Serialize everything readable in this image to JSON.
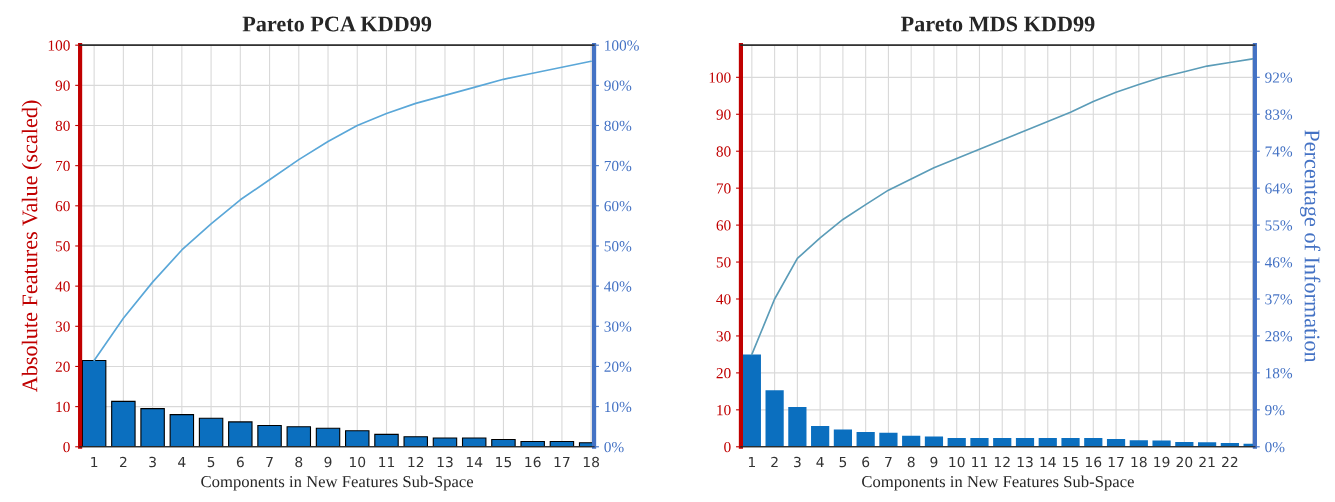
{
  "chart_data": [
    {
      "type": "bar",
      "title": "Pareto PCA KDD99",
      "xlabel": "Components in New Features Sub-Space",
      "ylabel": "Absolute Features Value (scaled)",
      "categories": [
        "1",
        "2",
        "3",
        "4",
        "5",
        "6",
        "7",
        "8",
        "9",
        "10",
        "11",
        "12",
        "13",
        "14",
        "15",
        "16",
        "17",
        "18"
      ],
      "series": [
        {
          "color": "#0b6fbf",
          "values": [
            21.5,
            11.3,
            9.5,
            8.0,
            7.1,
            6.2,
            5.3,
            5.0,
            4.6,
            4.0,
            3.1,
            2.5,
            2.2,
            2.2,
            1.8,
            1.3,
            1.3,
            1.0
          ]
        },
        {
          "type": "line",
          "axis": "y2",
          "color": "#5aa7d8",
          "values": [
            21.5,
            32,
            41,
            49,
            55.5,
            61.5,
            66.5,
            71.5,
            76,
            80,
            83,
            85.5,
            87.5,
            89.5,
            91.5,
            93,
            94.5,
            96
          ]
        }
      ],
      "ylim": [
        0,
        100
      ],
      "yticks": [
        0,
        10,
        20,
        30,
        40,
        50,
        60,
        70,
        80,
        90,
        100
      ],
      "y2lim": [
        0,
        100
      ],
      "y2ticks": [
        {
          "value": 0,
          "label": "0%"
        },
        {
          "value": 10,
          "label": "10%"
        },
        {
          "value": 20,
          "label": "20%"
        },
        {
          "value": 30,
          "label": "30%"
        },
        {
          "value": 40,
          "label": "40%"
        },
        {
          "value": 50,
          "label": "50%"
        },
        {
          "value": 60,
          "label": "60%"
        },
        {
          "value": 70,
          "label": "70%"
        },
        {
          "value": 80,
          "label": "80%"
        },
        {
          "value": 90,
          "label": "90%"
        },
        {
          "value": 100,
          "label": "100%"
        }
      ],
      "grid": true
    },
    {
      "type": "bar",
      "title": "Pareto MDS KDD99",
      "xlabel": "Components in New Features Sub-Space",
      "y2label": "Percentage of Information",
      "categories": [
        "1",
        "2",
        "3",
        "4",
        "5",
        "6",
        "7",
        "8",
        "9",
        "10",
        "11",
        "12",
        "13",
        "14",
        "15",
        "16",
        "17",
        "18",
        "19",
        "20",
        "21",
        "22",
        null
      ],
      "series": [
        {
          "color": "#0b6fbf",
          "values": [
            25,
            15.3,
            10.8,
            5.6,
            4.7,
            4.0,
            3.8,
            3.0,
            2.8,
            2.4,
            2.4,
            2.4,
            2.4,
            2.4,
            2.4,
            2.4,
            2.1,
            1.8,
            1.7,
            1.3,
            1.2,
            1.0,
            0.8
          ]
        },
        {
          "type": "line",
          "axis": "y2",
          "color": "#5b9cb8",
          "values": [
            23,
            36.8,
            46.9,
            52,
            56.6,
            60.3,
            63.9,
            66.7,
            69.5,
            71.8,
            74.1,
            76.4,
            78.7,
            81,
            83.3,
            86,
            88.3,
            90.2,
            92,
            93.4,
            94.8,
            95.7,
            96.6
          ]
        }
      ],
      "ylim": [
        0,
        108.7
      ],
      "yticks": [
        0,
        10,
        20,
        30,
        40,
        50,
        60,
        70,
        80,
        90,
        100
      ],
      "y2lim": [
        0,
        100
      ],
      "y2ticks": [
        {
          "value": 0,
          "label": "0%"
        },
        {
          "value": 9.2,
          "label": "9%"
        },
        {
          "value": 18.4,
          "label": "18%"
        },
        {
          "value": 27.6,
          "label": "28%"
        },
        {
          "value": 36.8,
          "label": "37%"
        },
        {
          "value": 46,
          "label": "46%"
        },
        {
          "value": 55.2,
          "label": "55%"
        },
        {
          "value": 64.4,
          "label": "64%"
        },
        {
          "value": 73.6,
          "label": "74%"
        },
        {
          "value": 82.8,
          "label": "83%"
        },
        {
          "value": 92,
          "label": "92%"
        }
      ],
      "grid": true
    }
  ]
}
